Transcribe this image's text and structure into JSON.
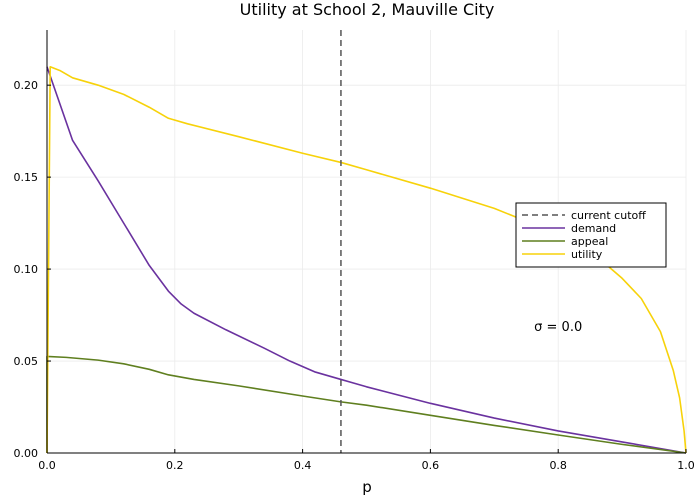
{
  "chart_data": {
    "type": "line",
    "title": "Utility at School 2, Mauville City",
    "xlabel": "p",
    "ylabel": "",
    "xlim": [
      0,
      1
    ],
    "ylim": [
      0,
      0.23
    ],
    "xticks": [
      0,
      0.2,
      0.4,
      0.6,
      0.8,
      1.0
    ],
    "xtick_labels": [
      "0.0",
      "0.2",
      "0.4",
      "0.6",
      "0.8",
      "1.0"
    ],
    "yticks": [
      0,
      0.05,
      0.1,
      0.15,
      0.2
    ],
    "ytick_labels": [
      "0.00",
      "0.05",
      "0.10",
      "0.15",
      "0.20"
    ],
    "grid": true,
    "legend_position": "right",
    "annotation": {
      "text": "σ = 0.0",
      "x": 0.8,
      "y": 0.069
    },
    "vline": {
      "name": "current cutoff",
      "x": 0.46,
      "color": "#555555",
      "style": "dashed"
    },
    "series": [
      {
        "name": "demand",
        "color": "#6a329f",
        "x": [
          0.0,
          0.04,
          0.08,
          0.12,
          0.16,
          0.19,
          0.21,
          0.23,
          0.28,
          0.34,
          0.38,
          0.42,
          0.46,
          0.5,
          0.6,
          0.7,
          0.8,
          0.9,
          1.0
        ],
        "y": [
          0.21,
          0.17,
          0.148,
          0.125,
          0.102,
          0.088,
          0.081,
          0.076,
          0.067,
          0.057,
          0.05,
          0.044,
          0.04,
          0.036,
          0.027,
          0.019,
          0.012,
          0.006,
          0.0
        ]
      },
      {
        "name": "appeal",
        "color": "#5f7f1f",
        "x": [
          0.0,
          0.03,
          0.08,
          0.12,
          0.16,
          0.19,
          0.23,
          0.3,
          0.4,
          0.46,
          0.5,
          0.6,
          0.7,
          0.8,
          0.9,
          1.0
        ],
        "y": [
          0.0525,
          0.052,
          0.0505,
          0.0485,
          0.0455,
          0.0425,
          0.04,
          0.0365,
          0.031,
          0.0278,
          0.026,
          0.0205,
          0.015,
          0.0098,
          0.0047,
          0.0
        ],
        "start_y": 0.0
      },
      {
        "name": "utility",
        "color": "#f7d20a",
        "x": [
          0.0,
          0.005,
          0.02,
          0.04,
          0.08,
          0.12,
          0.16,
          0.19,
          0.22,
          0.3,
          0.4,
          0.46,
          0.5,
          0.6,
          0.7,
          0.8,
          0.86,
          0.9,
          0.93,
          0.96,
          0.98,
          0.99,
          0.997,
          1.0
        ],
        "y": [
          0.0,
          0.21,
          0.208,
          0.204,
          0.2,
          0.195,
          0.188,
          0.182,
          0.179,
          0.172,
          0.163,
          0.158,
          0.154,
          0.144,
          0.133,
          0.119,
          0.107,
          0.095,
          0.084,
          0.066,
          0.045,
          0.03,
          0.012,
          0.0
        ]
      }
    ]
  }
}
